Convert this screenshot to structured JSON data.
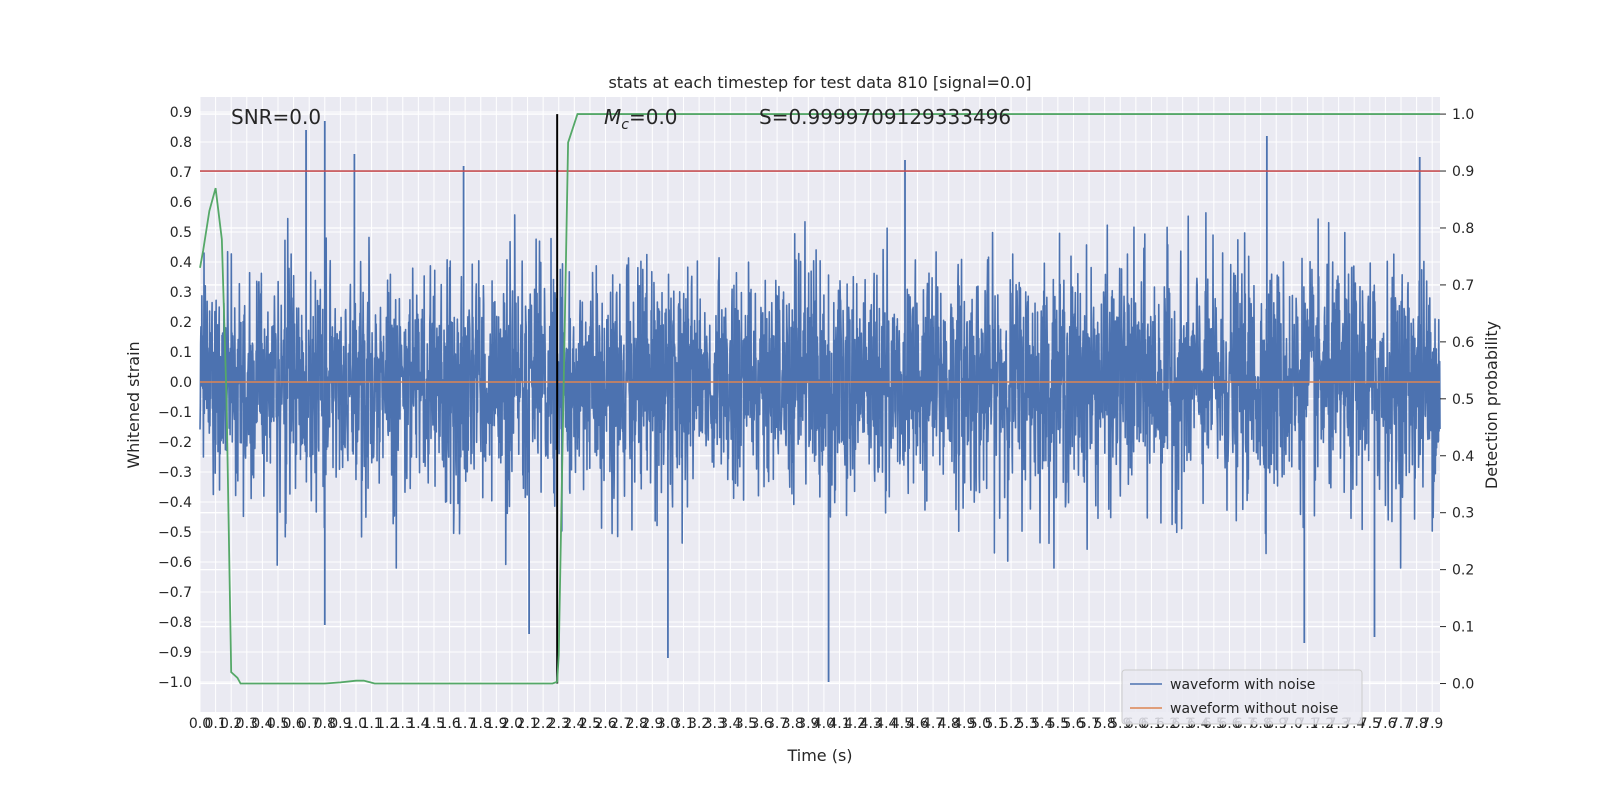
{
  "chart_data": {
    "type": "line",
    "title": "stats at each timestep for test data 810 [signal=0.0]",
    "xlabel": "Time (s)",
    "ylabel_left": "Whitened strain",
    "ylabel_right": "Detection probability",
    "xlim": [
      0.0,
      7.95
    ],
    "ylim_left": [
      -1.1,
      0.95
    ],
    "ylim_right": [
      -0.05,
      1.03
    ],
    "x_ticks": [
      0.0,
      0.1,
      0.2,
      0.3,
      0.4,
      0.5,
      0.6,
      0.7,
      0.8,
      0.9,
      1.0,
      1.1,
      1.2,
      1.3,
      1.4,
      1.5,
      1.6,
      1.7,
      1.8,
      1.9,
      2.0,
      2.1,
      2.2,
      2.3,
      2.4,
      2.5,
      2.6,
      2.7,
      2.8,
      2.9,
      3.0,
      3.1,
      3.2,
      3.3,
      3.4,
      3.5,
      3.6,
      3.7,
      3.8,
      3.9,
      4.0,
      4.1,
      4.2,
      4.3,
      4.4,
      4.5,
      4.6,
      4.7,
      4.8,
      4.9,
      5.0,
      5.1,
      5.2,
      5.3,
      5.4,
      5.5,
      5.6,
      5.7,
      5.8,
      5.9,
      6.0,
      6.1,
      6.2,
      6.3,
      6.4,
      6.5,
      6.6,
      6.7,
      6.8,
      6.9,
      7.0,
      7.1,
      7.2,
      7.3,
      7.4,
      7.5,
      7.6,
      7.7,
      7.8,
      7.9
    ],
    "y_ticks_left": [
      -1.0,
      -0.9,
      -0.8,
      -0.7,
      -0.6,
      -0.5,
      -0.4,
      -0.3,
      -0.2,
      -0.1,
      0.0,
      0.1,
      0.2,
      0.3,
      0.4,
      0.5,
      0.6,
      0.7,
      0.8,
      0.9
    ],
    "y_ticks_right": [
      0.0,
      0.1,
      0.2,
      0.3,
      0.4,
      0.5,
      0.6,
      0.7,
      0.8,
      0.9,
      1.0
    ],
    "annotations": {
      "snr": "SNR=0.0",
      "mc_symbol": "M",
      "mc_sub": "c",
      "mc_value": "=0.0",
      "s": "S=0.9999709129333496"
    },
    "threshold_line": {
      "y_right": 0.9,
      "color": "#c44e52"
    },
    "vertical_marker": {
      "x": 2.29,
      "color": "#000000"
    },
    "series": [
      {
        "name": "waveform with noise",
        "axis": "left",
        "color": "#4c72b0",
        "note": "dense noise, sampled from 0.0 to 7.95 s, typical amplitude ±0.3, peaks up to 0.87 and down to -1.0",
        "peaks_max": [
          [
            0.68,
            0.84
          ],
          [
            0.8,
            0.87
          ],
          [
            0.99,
            0.76
          ],
          [
            1.69,
            0.72
          ],
          [
            4.52,
            0.74
          ],
          [
            6.84,
            0.82
          ],
          [
            7.82,
            0.75
          ]
        ],
        "peaks_min": [
          [
            0.8,
            -0.81
          ],
          [
            2.11,
            -0.84
          ],
          [
            3.0,
            -0.92
          ],
          [
            4.03,
            -1.0
          ],
          [
            7.08,
            -0.87
          ],
          [
            7.53,
            -0.85
          ]
        ]
      },
      {
        "name": "waveform without noise",
        "axis": "left",
        "color": "#dd8452",
        "x": [
          0.0,
          7.95
        ],
        "y": [
          0.0,
          0.0
        ]
      },
      {
        "name": "detection probability",
        "axis": "right",
        "color": "#55a868",
        "x": [
          0.0,
          0.02,
          0.06,
          0.1,
          0.14,
          0.17,
          0.2,
          0.24,
          0.26,
          0.3,
          0.8,
          0.9,
          1.0,
          1.05,
          1.12,
          1.2,
          2.26,
          2.29,
          2.3,
          2.36,
          2.42,
          7.95
        ],
        "y": [
          0.73,
          0.76,
          0.83,
          0.87,
          0.78,
          0.5,
          0.02,
          0.01,
          0.0,
          0.0,
          0.0,
          0.002,
          0.005,
          0.005,
          0.0,
          0.0,
          0.0,
          0.003,
          0.05,
          0.95,
          1.0,
          1.0
        ]
      }
    ],
    "legend": {
      "placement": "lower right",
      "entries": [
        "waveform with noise",
        "waveform without noise"
      ]
    },
    "grid": true,
    "colors": {
      "plot_background": "#eaeaf2",
      "grid": "#ffffff",
      "noise": "#4c72b0",
      "clean": "#dd8452",
      "probability": "#55a868",
      "threshold": "#c44e52"
    }
  }
}
